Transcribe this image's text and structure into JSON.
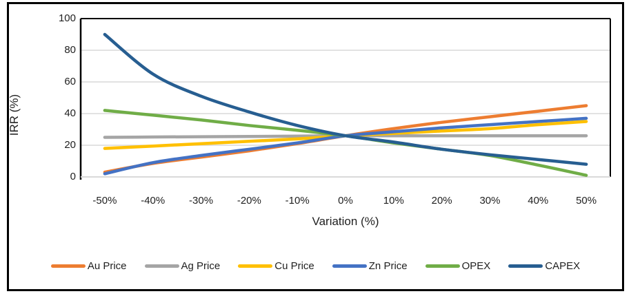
{
  "chart_data": {
    "type": "line",
    "title": "",
    "xlabel": "Variation (%)",
    "ylabel": "IRR (%)",
    "categories": [
      "-50%",
      "-40%",
      "-30%",
      "-20%",
      "-10%",
      "0%",
      "10%",
      "20%",
      "30%",
      "40%",
      "50%"
    ],
    "y_ticks": [
      0,
      20,
      40,
      60,
      80,
      100
    ],
    "ylim": [
      0,
      100
    ],
    "grid": "horizontal",
    "legend_position": "bottom",
    "series": [
      {
        "name": "Au Price",
        "color": "#ED7D31",
        "values": [
          3,
          8.5,
          12.5,
          16.5,
          21,
          26,
          30.5,
          34.5,
          38,
          41.5,
          45
        ]
      },
      {
        "name": "Ag Price",
        "color": "#A5A5A5",
        "values": [
          25,
          25.2,
          25.4,
          25.5,
          25.8,
          26,
          26,
          26,
          26,
          26,
          26
        ]
      },
      {
        "name": "Cu Price",
        "color": "#FFC000",
        "values": [
          18,
          19.5,
          21,
          22.5,
          24,
          26,
          27.5,
          29,
          30.5,
          33,
          35
        ]
      },
      {
        "name": "Zn Price",
        "color": "#4472C4",
        "values": [
          2,
          9,
          13.5,
          17.5,
          21.5,
          26,
          28.5,
          31,
          33,
          35,
          37
        ]
      },
      {
        "name": "OPEX",
        "color": "#70AD47",
        "values": [
          42,
          39,
          36,
          32.5,
          29.5,
          26,
          21.5,
          17.5,
          13.5,
          7.5,
          1
        ]
      },
      {
        "name": "CAPEX",
        "color": "#275E91",
        "values": [
          90,
          65,
          51,
          41,
          32.5,
          26,
          22,
          17.5,
          14,
          11,
          8
        ]
      }
    ]
  },
  "style_colors": {
    "gridline": "#D9D9D9",
    "plot_border": "#000000",
    "bottom_axis": "#D9D9D9",
    "text": "#1f1f1f"
  }
}
